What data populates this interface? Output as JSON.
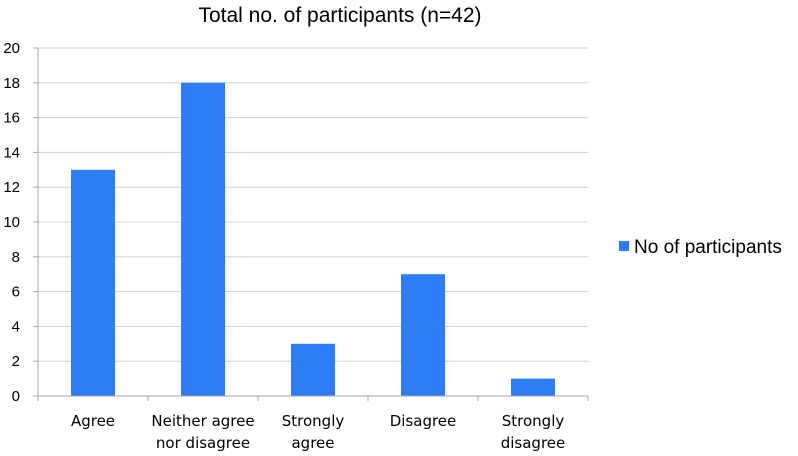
{
  "chart_data": {
    "type": "bar",
    "title": "Total no. of participants (n=42)",
    "categories": [
      "Agree",
      "Neither agree nor disagree",
      "Strongly agree",
      "Disagree",
      "Strongly disagree"
    ],
    "category_lines": [
      [
        "Agree"
      ],
      [
        "Neither agree",
        "nor disagree"
      ],
      [
        "Strongly",
        "agree"
      ],
      [
        "Disagree"
      ],
      [
        "Strongly",
        "disagree"
      ]
    ],
    "series": [
      {
        "name": "No of participants",
        "values": [
          13,
          18,
          3,
          7,
          1
        ]
      }
    ],
    "ylim": [
      0,
      20
    ],
    "yticks": [
      0,
      2,
      4,
      6,
      8,
      10,
      12,
      14,
      16,
      18,
      20
    ],
    "xlabel": "",
    "ylabel": "",
    "grid": true,
    "legend_position": "right",
    "colors": {
      "bar": "#2e7cf6"
    }
  }
}
